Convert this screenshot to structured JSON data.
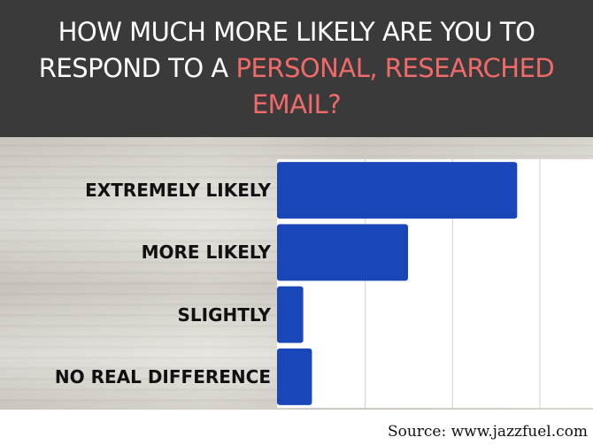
{
  "header": {
    "line1": "HOW MUCH MORE LIKELY ARE YOU TO",
    "line2_prefix": "RESPOND TO A ",
    "line2_accent": "PERSONAL, RESEARCHED",
    "line3_accent": "EMAIL?"
  },
  "colors": {
    "bar": "#1a47b8",
    "accent": "#f06a6a",
    "header_bg": "#3a3a3a"
  },
  "source": "Source: www.jazzfuel.com",
  "chart_data": {
    "type": "bar",
    "orientation": "horizontal",
    "categories": [
      "EXTREMELY LIKELY",
      "MORE LIKELY",
      "SLIGHTLY",
      "NO REAL DIFFERENCE"
    ],
    "values": [
      55,
      30,
      6,
      8
    ],
    "xlim": [
      0,
      60
    ],
    "grid": true,
    "title": "",
    "xlabel": "",
    "ylabel": ""
  }
}
